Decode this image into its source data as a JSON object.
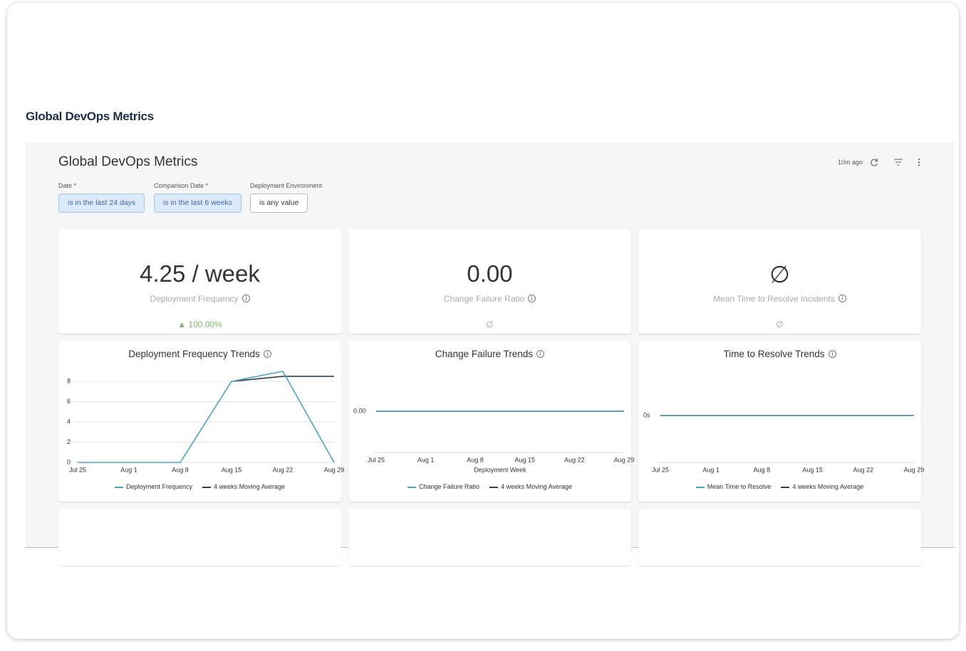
{
  "header": {
    "title": "Global DevOps Metrics"
  },
  "dashboard": {
    "title": "Global DevOps Metrics",
    "updated": "10m ago",
    "filters": [
      {
        "label": "Date *",
        "value": "is in the last 24 days",
        "active": true
      },
      {
        "label": "Comparison Date *",
        "value": "is in the last 6 weeks",
        "active": true
      },
      {
        "label": "Deployment Environment",
        "value": "is any value",
        "active": false
      }
    ],
    "tiles": [
      {
        "value": "4.25 / week",
        "label": "Deployment Frequency",
        "change": "▲ 100.00%",
        "change_color": "#7cb36b"
      },
      {
        "value": "0.00",
        "label": "Change Failure Ratio",
        "change": "∅",
        "change_color": "#999999"
      },
      {
        "value": "∅",
        "label": "Mean Time to Resolve Incidents",
        "change": "∅",
        "change_color": "#999999"
      }
    ],
    "charts": [
      {
        "type": "line",
        "title": "Deployment Frequency Trends",
        "categories": [
          "Jul 25",
          "Aug 1",
          "Aug 8",
          "Aug 15",
          "Aug 22",
          "Aug 29"
        ],
        "ylim": [
          0,
          9.2
        ],
        "yticks": [
          0,
          2,
          4,
          6,
          8
        ],
        "grid": true,
        "series": [
          {
            "name": "Deployment Frequency",
            "color": "#4aa3c3",
            "values": [
              0,
              0,
              0,
              8,
              9,
              0
            ]
          },
          {
            "name": "4 weeks Moving Average",
            "color": "#2c3e50",
            "values": [
              null,
              null,
              null,
              8,
              8.5,
              8.5
            ]
          }
        ]
      },
      {
        "type": "line",
        "title": "Change Failure Trends",
        "x_label": "Deployment Week",
        "categories": [
          "Jul 25",
          "Aug 1",
          "Aug 8",
          "Aug 15",
          "Aug 22",
          "Aug 29"
        ],
        "ylim": [
          -1,
          1
        ],
        "yticks": [
          {
            "value": 0,
            "label": "0.00"
          }
        ],
        "grid": true,
        "series": [
          {
            "name": "Change Failure Ratio",
            "color": "#4aa3c3",
            "values": [
              0,
              0,
              0,
              0,
              0,
              0
            ]
          },
          {
            "name": "4 weeks Moving Average",
            "color": "#2c3e50",
            "values": [
              0,
              0,
              0,
              0,
              0,
              0
            ]
          }
        ]
      },
      {
        "type": "line",
        "title": "Time to Resolve Trends",
        "categories": [
          "Jul 25",
          "Aug 1",
          "Aug 8",
          "Aug 15",
          "Aug 22",
          "Aug 29"
        ],
        "ylim": [
          -1,
          1
        ],
        "yticks": [
          {
            "value": 0,
            "label": "0s"
          }
        ],
        "grid": true,
        "series": [
          {
            "name": "Mean Time to Resolve",
            "color": "#4aa3c3",
            "values": [
              0,
              0,
              0,
              0,
              0,
              0
            ]
          },
          {
            "name": "4 weeks Moving Average",
            "color": "#2c3e50",
            "values": [
              0,
              0,
              0,
              0,
              0,
              0
            ]
          }
        ]
      }
    ]
  }
}
